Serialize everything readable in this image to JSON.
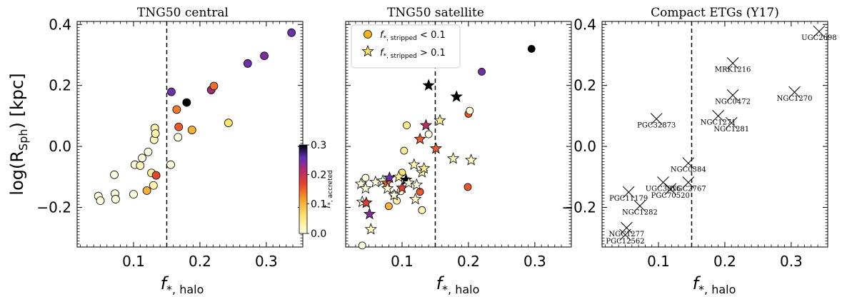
{
  "chart_data": [
    {
      "type": "scatter",
      "title": "TNG50 central",
      "xlabel_main": "f",
      "xlabel_sub": "*, halo",
      "ylabel": "log(R",
      "ylabel_sub": "Sph",
      "ylabel_tail": ") [kpc]",
      "xlim": [
        0.015,
        0.355
      ],
      "ylim": [
        -0.33,
        0.41
      ],
      "xticks": [
        0.1,
        0.2,
        0.3
      ],
      "xtick_labels": [
        "0.1",
        "0.2",
        "0.3"
      ],
      "yticks": [
        -0.2,
        0.0,
        0.2,
        0.4
      ],
      "ytick_labels": [
        "−0.2",
        "0.0",
        "0.2",
        "0.4"
      ],
      "vline": 0.15,
      "colorbar": {
        "label": "f",
        "label_sub": "*, accreted",
        "range": [
          0.0,
          0.3
        ],
        "ticks": [
          0.0,
          0.1,
          0.2,
          0.3
        ],
        "tick_labels": [
          "0.0",
          "0.1",
          "0.2",
          "0.3"
        ]
      },
      "points": [
        {
          "x": 0.047,
          "y": -0.163,
          "c": 0.0
        },
        {
          "x": 0.05,
          "y": -0.178,
          "c": 0.0
        },
        {
          "x": 0.071,
          "y": -0.093,
          "c": 0.0
        },
        {
          "x": 0.072,
          "y": -0.155,
          "c": 0.0
        },
        {
          "x": 0.073,
          "y": -0.173,
          "c": 0.0
        },
        {
          "x": 0.1,
          "y": -0.157,
          "c": 0.0
        },
        {
          "x": 0.102,
          "y": -0.06,
          "c": 0.0
        },
        {
          "x": 0.11,
          "y": -0.063,
          "c": 0.02
        },
        {
          "x": 0.113,
          "y": -0.038,
          "c": 0.0
        },
        {
          "x": 0.12,
          "y": -0.145,
          "c": 0.1
        },
        {
          "x": 0.122,
          "y": -0.018,
          "c": 0.0
        },
        {
          "x": 0.127,
          "y": -0.087,
          "c": 0.04
        },
        {
          "x": 0.13,
          "y": -0.128,
          "c": 0.03
        },
        {
          "x": 0.131,
          "y": 0.022,
          "c": 0.02
        },
        {
          "x": 0.132,
          "y": 0.06,
          "c": 0.03
        },
        {
          "x": 0.133,
          "y": 0.042,
          "c": 0.03
        },
        {
          "x": 0.134,
          "y": -0.095,
          "c": 0.16
        },
        {
          "x": 0.156,
          "y": -0.06,
          "c": 0.0
        },
        {
          "x": 0.157,
          "y": 0.179,
          "c": 0.25
        },
        {
          "x": 0.165,
          "y": 0.121,
          "c": 0.13
        },
        {
          "x": 0.168,
          "y": 0.064,
          "c": 0.15
        },
        {
          "x": 0.167,
          "y": 0.03,
          "c": 0.0
        },
        {
          "x": 0.18,
          "y": 0.144,
          "c": 0.3
        },
        {
          "x": 0.188,
          "y": 0.054,
          "c": 0.1
        },
        {
          "x": 0.217,
          "y": 0.185,
          "c": 0.22
        },
        {
          "x": 0.221,
          "y": 0.198,
          "c": 0.14
        },
        {
          "x": 0.243,
          "y": 0.077,
          "c": 0.06
        },
        {
          "x": 0.272,
          "y": 0.272,
          "c": 0.25
        },
        {
          "x": 0.297,
          "y": 0.297,
          "c": 0.24
        },
        {
          "x": 0.338,
          "y": 0.373,
          "c": 0.25
        }
      ]
    },
    {
      "type": "scatter",
      "title": "TNG50 satellite",
      "xlim": [
        0.015,
        0.355
      ],
      "ylim": [
        -0.33,
        0.41
      ],
      "xticks": [
        0.1,
        0.2,
        0.3
      ],
      "xtick_labels": [
        "0.1",
        "0.2",
        "0.3"
      ],
      "vline": 0.15,
      "legend": {
        "position": "top-left",
        "entries": [
          {
            "marker": "circle",
            "label_main": "f",
            "label_sub": "*, stripped",
            "label_tail": " < 0.1"
          },
          {
            "marker": "star",
            "label_main": "f",
            "label_sub": "*, stripped",
            "label_tail": " > 0.1"
          }
        ]
      },
      "circles": [
        {
          "x": 0.04,
          "y": -0.325,
          "c": 0.0
        },
        {
          "x": 0.045,
          "y": -0.103,
          "c": 0.0
        },
        {
          "x": 0.08,
          "y": -0.196,
          "c": 0.1
        },
        {
          "x": 0.088,
          "y": -0.158,
          "c": 0.02
        },
        {
          "x": 0.092,
          "y": -0.178,
          "c": 0.03
        },
        {
          "x": 0.098,
          "y": -0.147,
          "c": 0.0
        },
        {
          "x": 0.1,
          "y": -0.086,
          "c": 0.06
        },
        {
          "x": 0.103,
          "y": -0.014,
          "c": 0.04
        },
        {
          "x": 0.107,
          "y": 0.069,
          "c": 0.05
        },
        {
          "x": 0.127,
          "y": -0.149,
          "c": 0.15
        },
        {
          "x": 0.13,
          "y": -0.209,
          "c": 0.02
        },
        {
          "x": 0.14,
          "y": 0.04,
          "c": 0.0
        },
        {
          "x": 0.199,
          "y": -0.133,
          "c": 0.15
        },
        {
          "x": 0.2,
          "y": 0.107,
          "c": 0.15
        },
        {
          "x": 0.202,
          "y": 0.117,
          "c": 0.0
        },
        {
          "x": 0.22,
          "y": 0.245,
          "c": 0.25
        },
        {
          "x": 0.295,
          "y": 0.32,
          "c": 0.32
        }
      ],
      "stars": [
        {
          "x": 0.038,
          "y": -0.123,
          "c": 0.0
        },
        {
          "x": 0.04,
          "y": -0.182,
          "c": 0.0
        },
        {
          "x": 0.045,
          "y": -0.138,
          "c": 0.0
        },
        {
          "x": 0.046,
          "y": -0.185,
          "c": 0.17
        },
        {
          "x": 0.051,
          "y": -0.222,
          "c": 0.24
        },
        {
          "x": 0.053,
          "y": -0.272,
          "c": 0.02
        },
        {
          "x": 0.06,
          "y": -0.117,
          "c": 0.0
        },
        {
          "x": 0.071,
          "y": -0.113,
          "c": 0.0
        },
        {
          "x": 0.077,
          "y": -0.12,
          "c": 0.14
        },
        {
          "x": 0.078,
          "y": -0.138,
          "c": 0.01
        },
        {
          "x": 0.081,
          "y": -0.103,
          "c": 0.25
        },
        {
          "x": 0.088,
          "y": -0.16,
          "c": 0.0
        },
        {
          "x": 0.095,
          "y": -0.1,
          "c": 0.04
        },
        {
          "x": 0.1,
          "y": -0.136,
          "c": 0.17
        },
        {
          "x": 0.106,
          "y": -0.11,
          "c": 0.3
        },
        {
          "x": 0.11,
          "y": -0.12,
          "c": 0.0
        },
        {
          "x": 0.118,
          "y": -0.06,
          "c": 0.02
        },
        {
          "x": 0.12,
          "y": -0.173,
          "c": 0.01
        },
        {
          "x": 0.122,
          "y": -0.126,
          "c": 0.0
        },
        {
          "x": 0.127,
          "y": 0.024,
          "c": 0.15
        },
        {
          "x": 0.13,
          "y": -0.085,
          "c": 0.02
        },
        {
          "x": 0.133,
          "y": -0.072,
          "c": 0.04
        },
        {
          "x": 0.136,
          "y": 0.069,
          "c": 0.2
        },
        {
          "x": 0.14,
          "y": 0.2,
          "c": 0.32
        },
        {
          "x": 0.151,
          "y": -0.007,
          "c": 0.15
        },
        {
          "x": 0.157,
          "y": 0.085,
          "c": 0.04
        },
        {
          "x": 0.177,
          "y": -0.04,
          "c": 0.02
        },
        {
          "x": 0.182,
          "y": 0.163,
          "c": 0.32
        },
        {
          "x": 0.204,
          "y": -0.045,
          "c": 0.02
        }
      ]
    },
    {
      "type": "scatter",
      "title": "Compact ETGs (Y17)",
      "xlim": [
        0.015,
        0.355
      ],
      "ylim": [
        -0.33,
        0.41
      ],
      "xticks": [
        0.1,
        0.2,
        0.3
      ],
      "xtick_labels": [
        "0.1",
        "0.2",
        "0.3"
      ],
      "yticks": [
        -0.2,
        0.0,
        0.2,
        0.4
      ],
      "ytick_labels": [
        "−0.2",
        "0.0",
        "0.2",
        "0.4"
      ],
      "vline": 0.15,
      "points": [
        {
          "name": "UGC2698",
          "x": 0.342,
          "y": 0.377
        },
        {
          "name": "MRK1216",
          "x": 0.212,
          "y": 0.273
        },
        {
          "name": "NGC0472",
          "x": 0.212,
          "y": 0.168
        },
        {
          "name": "NGC1270",
          "x": 0.305,
          "y": 0.178
        },
        {
          "name": "PGC32873",
          "x": 0.097,
          "y": 0.09
        },
        {
          "name": "NGC1271",
          "x": 0.19,
          "y": 0.1
        },
        {
          "name": "NGC1281",
          "x": 0.21,
          "y": 0.077
        },
        {
          "name": "NGC0384",
          "x": 0.145,
          "y": -0.055
        },
        {
          "name": "UGC3816",
          "x": 0.107,
          "y": -0.118
        },
        {
          "name": "NGC2767",
          "x": 0.145,
          "y": -0.118
        },
        {
          "name": "PGC70520",
          "x": 0.118,
          "y": -0.14
        },
        {
          "name": "PGC11179",
          "x": 0.055,
          "y": -0.15
        },
        {
          "name": "NGC1282",
          "x": 0.072,
          "y": -0.195
        },
        {
          "name": "NGC1277",
          "x": 0.052,
          "y": -0.267
        },
        {
          "name": "PGC12562",
          "x": 0.05,
          "y": -0.29
        }
      ]
    }
  ]
}
